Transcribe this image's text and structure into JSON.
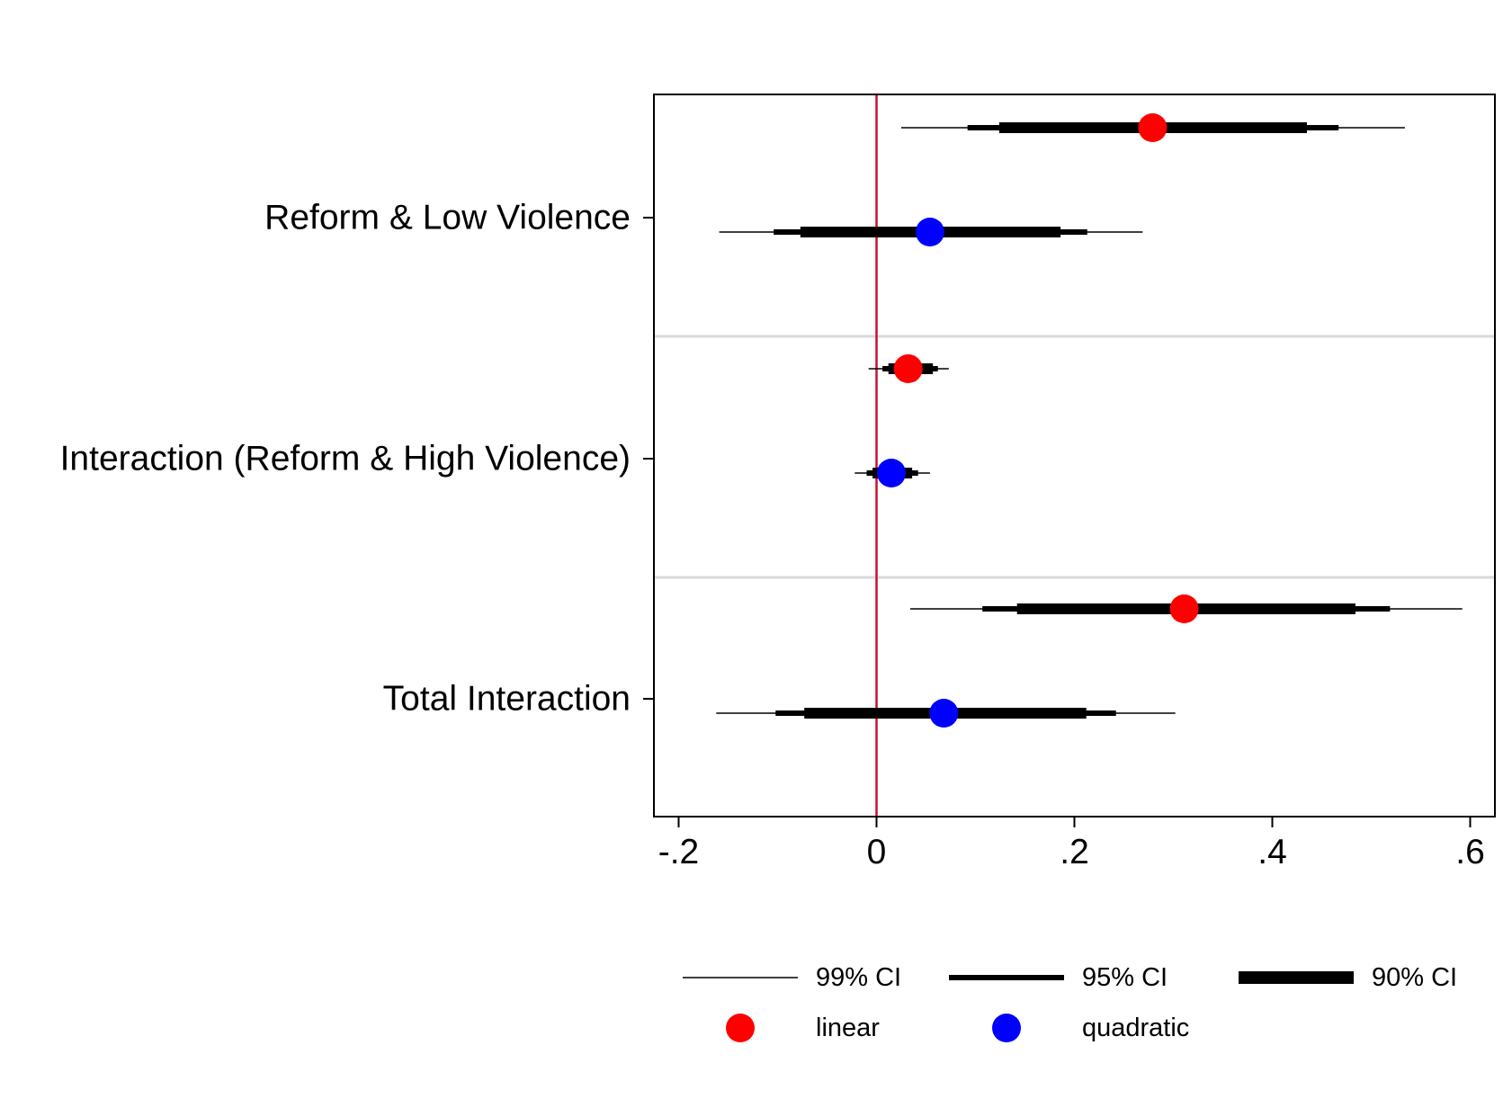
{
  "chart_data": {
    "type": "coefficient-plot",
    "title": "",
    "xlabel": "",
    "ylabel": "",
    "xlim": [
      -0.225,
      0.625
    ],
    "x_ticks": [
      -0.2,
      0,
      0.2,
      0.4,
      0.6
    ],
    "x_tick_labels": [
      "-.2",
      "0",
      ".2",
      ".4",
      ".6"
    ],
    "reference_line": {
      "x": 0,
      "color": "#c8102e"
    },
    "grid": "horizontal separators between categories",
    "legend_position": "bottom",
    "categories": [
      "Reform & Low Violence",
      "Interaction (Reform & High Violence)",
      "Total Interaction"
    ],
    "series": [
      {
        "name": "linear",
        "color": "#ff0000",
        "points": [
          {
            "category": "Reform & Low Violence",
            "estimate": 0.279,
            "ci90": [
              0.124,
              0.435
            ],
            "ci95": [
              0.092,
              0.467
            ],
            "ci99": [
              0.025,
              0.534
            ]
          },
          {
            "category": "Interaction (Reform & High Violence)",
            "estimate": 0.032,
            "ci90": [
              0.012,
              0.057
            ],
            "ci95": [
              0.006,
              0.062
            ],
            "ci99": [
              -0.008,
              0.073
            ]
          },
          {
            "category": "Total Interaction",
            "estimate": 0.311,
            "ci90": [
              0.142,
              0.484
            ],
            "ci95": [
              0.107,
              0.519
            ],
            "ci99": [
              0.034,
              0.592
            ]
          }
        ]
      },
      {
        "name": "quadratic",
        "color": "#0000ff",
        "points": [
          {
            "category": "Reform & Low Violence",
            "estimate": 0.054,
            "ci90": [
              -0.077,
              0.186
            ],
            "ci95": [
              -0.104,
              0.213
            ],
            "ci99": [
              -0.159,
              0.269
            ]
          },
          {
            "category": "Interaction (Reform & High Violence)",
            "estimate": 0.015,
            "ci90": [
              -0.004,
              0.036
            ],
            "ci95": [
              -0.01,
              0.042
            ],
            "ci99": [
              -0.022,
              0.054
            ]
          },
          {
            "category": "Total Interaction",
            "estimate": 0.068,
            "ci90": [
              -0.073,
              0.212
            ],
            "ci95": [
              -0.102,
              0.242
            ],
            "ci99": [
              -0.162,
              0.302
            ]
          }
        ]
      }
    ],
    "legend": {
      "ci": [
        {
          "label": "99% CI",
          "style": "thin"
        },
        {
          "label": "95% CI",
          "style": "medium"
        },
        {
          "label": "90% CI",
          "style": "thick"
        }
      ],
      "markers": [
        {
          "label": "linear",
          "color": "#ff0000"
        },
        {
          "label": "quadratic",
          "color": "#0000ff"
        }
      ]
    }
  }
}
